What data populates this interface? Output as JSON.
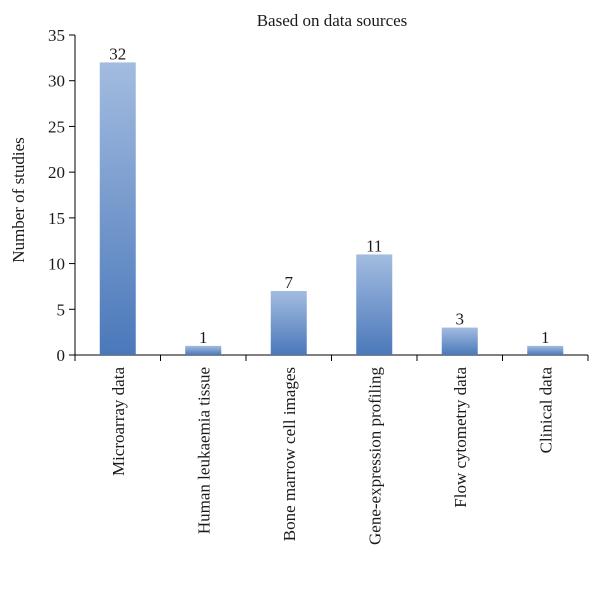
{
  "chart_data": {
    "type": "bar",
    "title": "Based on data sources",
    "xlabel": "",
    "ylabel": "Number of studies",
    "categories": [
      "Microarray data",
      "Human leukaemia tissue",
      "Bone marrow cell images",
      "Gene-expression profiling",
      "Flow cytometry data",
      "Clinical data"
    ],
    "values": [
      32,
      1,
      7,
      11,
      3,
      1
    ],
    "ylim": [
      0,
      35
    ],
    "yticks": [
      0,
      5,
      10,
      15,
      20,
      25,
      30,
      35
    ],
    "grid": false,
    "legend": "none",
    "data_labels": true,
    "colors": {
      "bar_top": "#a3bce0",
      "bar_bottom": "#4a78ba",
      "axis": "#000000"
    }
  }
}
